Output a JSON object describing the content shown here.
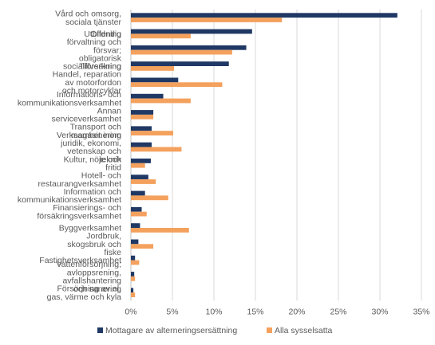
{
  "chart_data": {
    "type": "bar",
    "orientation": "horizontal",
    "categories": [
      "Vård och omsorg, sociala tjänster",
      "Utbildning",
      "Offentlig förvaltning och försvar; obligatorisk socialförsäkring",
      "Tillverkning",
      "Handel, reparation av motorfordon och motorcyklar",
      "Informations- och kommunikationsverksamhet",
      "Annan serviceverksamhet",
      "Transport och magasinering",
      "Verksamhet inom juridik, ekonomi, vetenskap och teknik",
      "Kultur, nöje och fritid",
      "Hotell- och restaurangverksamhet",
      "Information och kommunikationsverksamhet",
      "Finansierings- och försäkringsverksamhet",
      "Byggverksamhet",
      "Jordbruk, skogsbruk och fiske",
      "Fastighetsverksamhet",
      "Vattenförsörjning; avloppsrening, avfallshantering och sanering",
      "Försörjning av el, gas, värme och kyla"
    ],
    "display_labels": [
      [
        "Vård och omsorg,",
        "sociala tjänster"
      ],
      [
        "Utbildning"
      ],
      [
        "Offentlig",
        "förvaltning och",
        "försvar;",
        "obligatorisk",
        "socialförsäkring"
      ],
      [
        "Tillverkning"
      ],
      [
        "Handel, reparation",
        "av motorfordon",
        "och motorcyklar"
      ],
      [
        "Informations- och",
        "kommunikationsverksamhet"
      ],
      [
        "Annan",
        "serviceverksamhet"
      ],
      [
        "Transport och",
        "magasinering"
      ],
      [
        "Verksamhet inom",
        "juridik, ekonomi,",
        "vetenskap och",
        "teknik"
      ],
      [
        "Kultur, nöje och",
        "fritid"
      ],
      [
        "Hotell- och",
        "restaurangverksamhet"
      ],
      [
        "Information och",
        "kommunikationsverksamhet"
      ],
      [
        "Finansierings- och",
        "försäkringsverksamhet"
      ],
      [
        "Byggverksamhet"
      ],
      [
        "Jordbruk,",
        "skogsbruk och",
        "fiske"
      ],
      [
        "Fastighetsverksamhet"
      ],
      [
        "Vattenförsörjning;",
        "avloppsrening,",
        "avfallshantering",
        "och sanering"
      ],
      [
        "Försörjning av el,",
        "gas, värme och kyla"
      ]
    ],
    "series": [
      {
        "name": "Mottagare av alterneringsersättning",
        "color": "#203864",
        "values": [
          32.1,
          14.6,
          13.9,
          11.8,
          5.7,
          3.9,
          2.7,
          2.5,
          2.5,
          2.4,
          2.1,
          1.7,
          1.3,
          1.1,
          0.9,
          0.5,
          0.4,
          0.3
        ]
      },
      {
        "name": "Alla sysselsatta",
        "color": "#F4A15D",
        "values": [
          18.2,
          7.2,
          12.2,
          5.2,
          11.0,
          7.2,
          2.7,
          5.1,
          6.1,
          1.7,
          3.0,
          4.5,
          1.9,
          7.0,
          2.7,
          1.0,
          0.5,
          0.5
        ]
      }
    ],
    "xlim": [
      0,
      35
    ],
    "xticks": [
      "0%",
      "5%",
      "10%",
      "15%",
      "20%",
      "25%",
      "30%",
      "35%"
    ],
    "grid": true,
    "legend_position": "bottom"
  }
}
